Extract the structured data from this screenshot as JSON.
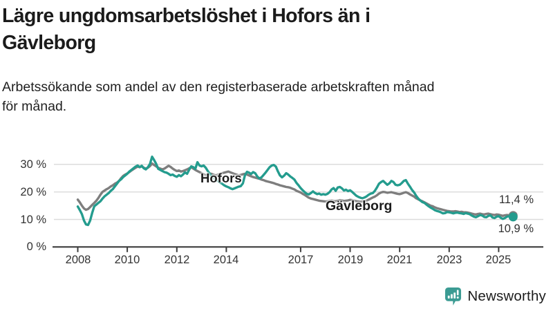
{
  "header": {
    "title_line1": "Lägre ungdomsarbetslöshet i Hofors än i",
    "title_line2": "Gävleborg",
    "subtitle_line1": "Arbetssökande som andel av den registerbaserade arbetskraften månad",
    "subtitle_line2": "för månad."
  },
  "branding": {
    "logo_text": "Newsworthy",
    "logo_icon": "newsworthy-speech-bubble-bar-chart-icon"
  },
  "colors": {
    "hofors_teal": "#249c8e",
    "gavleborg_gray": "#7e7e7e",
    "gridline": "#dcdcdc",
    "axis": "#3c3c3c",
    "text": "#1c1c1c",
    "logo_teal": "#31978e"
  },
  "chart_data": {
    "type": "line",
    "x_unit": "year, monthly points",
    "y_unit": "percent",
    "ylim": [
      0,
      35
    ],
    "xlim": [
      2008,
      2025.58
    ],
    "grid": "horizontal",
    "legend_position": "inline-labels",
    "y_ticks": [
      {
        "value": 0,
        "label": "0 %"
      },
      {
        "value": 10,
        "label": "10 %"
      },
      {
        "value": 20,
        "label": "20 %"
      },
      {
        "value": 30,
        "label": "30 %"
      }
    ],
    "x_ticks": [
      {
        "value": 2008,
        "label": "2008"
      },
      {
        "value": 2010,
        "label": "2010"
      },
      {
        "value": 2012,
        "label": "2012"
      },
      {
        "value": 2014,
        "label": "2014"
      },
      {
        "value": 2017,
        "label": "2017"
      },
      {
        "value": 2019,
        "label": "2019"
      },
      {
        "value": 2021,
        "label": "2021"
      },
      {
        "value": 2023,
        "label": "2023"
      },
      {
        "value": 2025,
        "label": "2025"
      }
    ],
    "series": [
      {
        "name": "Hofors",
        "label": "Hofors",
        "color": "#249c8e",
        "end_label": "10,9 %",
        "end_value": 10.9,
        "start_year": 2008,
        "points_per_year": 12,
        "values": [
          14.7,
          13.4,
          11.9,
          9.6,
          8.2,
          8.0,
          9.6,
          12.4,
          14.8,
          15.4,
          16.0,
          16.6,
          17.6,
          18.4,
          19.0,
          19.6,
          20.4,
          21.0,
          22.0,
          23.0,
          24.0,
          24.6,
          25.4,
          26.0,
          26.6,
          27.4,
          28.0,
          28.6,
          29.2,
          29.6,
          29.0,
          29.5,
          28.6,
          28.2,
          29.0,
          30.2,
          32.8,
          31.6,
          30.2,
          28.4,
          28.0,
          27.6,
          27.2,
          27.0,
          26.6,
          26.1,
          26.3,
          25.8,
          25.5,
          26.1,
          25.7,
          26.3,
          27.1,
          26.6,
          28.1,
          29.3,
          29.0,
          28.4,
          30.8,
          29.6,
          29.3,
          29.6,
          28.8,
          27.6,
          26.6,
          25.6,
          25.0,
          24.4,
          24.0,
          23.4,
          23.0,
          22.4,
          22.0,
          21.7,
          21.3,
          21.0,
          21.3,
          21.6,
          21.9,
          22.1,
          23.1,
          26.0,
          27.3,
          27.0,
          26.5,
          27.2,
          26.8,
          25.6,
          24.9,
          25.3,
          26.1,
          27.0,
          28.0,
          29.0,
          29.6,
          29.8,
          29.2,
          27.5,
          26.0,
          25.3,
          25.9,
          26.8,
          26.3,
          25.6,
          25.1,
          24.5,
          23.3,
          22.4,
          21.4,
          20.6,
          19.9,
          19.3,
          19.1,
          19.6,
          20.2,
          19.6,
          19.2,
          19.4,
          19.0,
          19.2,
          19.0,
          19.3,
          19.9,
          20.9,
          21.4,
          20.4,
          21.6,
          21.8,
          21.3,
          20.5,
          20.8,
          20.3,
          20.6,
          20.0,
          19.3,
          18.6,
          18.2,
          17.9,
          17.7,
          18.0,
          18.4,
          19.0,
          19.4,
          19.6,
          20.4,
          21.6,
          23.0,
          23.6,
          24.0,
          23.3,
          22.6,
          23.1,
          24.0,
          23.6,
          22.6,
          22.4,
          22.6,
          23.2,
          24.0,
          24.3,
          23.0,
          21.9,
          20.7,
          19.8,
          18.6,
          17.6,
          16.9,
          16.3,
          16.0,
          15.4,
          14.8,
          14.3,
          13.9,
          13.4,
          13.1,
          12.9,
          12.6,
          12.2,
          12.3,
          12.7,
          12.6,
          12.4,
          12.2,
          12.4,
          12.5,
          12.3,
          12.2,
          12.0,
          12.3,
          12.1,
          11.9,
          11.4,
          11.0,
          10.8,
          11.2,
          11.6,
          11.4,
          10.9,
          10.8,
          11.3,
          11.5,
          10.7,
          10.5,
          11.0,
          11.2,
          10.6,
          10.2,
          10.5,
          11.0,
          11.2,
          10.6,
          10.9
        ]
      },
      {
        "name": "Gävleborg",
        "label": "Gävleborg",
        "color": "#7e7e7e",
        "end_label": "11,4 %",
        "end_value": 11.4,
        "start_year": 2008,
        "points_per_year": 12,
        "values": [
          17.2,
          16.2,
          15.0,
          14.0,
          13.5,
          13.8,
          14.5,
          15.3,
          16.0,
          16.8,
          17.8,
          19.0,
          20.0,
          20.5,
          21.0,
          21.4,
          22.0,
          22.4,
          23.0,
          23.4,
          24.0,
          25.0,
          25.8,
          26.3,
          26.7,
          27.2,
          27.8,
          28.3,
          28.8,
          29.2,
          29.0,
          29.3,
          28.8,
          28.5,
          28.8,
          29.4,
          30.3,
          29.8,
          29.3,
          28.8,
          28.5,
          28.2,
          28.5,
          29.0,
          29.5,
          29.1,
          28.5,
          28.0,
          27.6,
          27.8,
          27.4,
          27.6,
          27.9,
          28.2,
          28.6,
          29.0,
          28.5,
          28.0,
          27.6,
          27.2,
          26.8,
          26.4,
          26.0,
          26.3,
          26.7,
          26.5,
          26.2,
          26.0,
          26.3,
          26.6,
          26.8,
          27.0,
          27.2,
          27.4,
          27.1,
          26.8,
          26.5,
          26.3,
          26.0,
          26.2,
          26.4,
          26.6,
          26.3,
          26.0,
          25.7,
          25.4,
          25.2,
          25.0,
          24.8,
          24.5,
          24.3,
          24.0,
          23.8,
          23.6,
          23.4,
          23.2,
          22.9,
          22.7,
          22.4,
          22.2,
          22.0,
          21.8,
          21.7,
          21.5,
          21.2,
          20.9,
          20.4,
          20.1,
          19.8,
          19.3,
          18.9,
          18.4,
          17.9,
          17.6,
          17.4,
          17.2,
          17.0,
          16.8,
          16.7,
          16.6,
          16.5,
          16.6,
          16.8,
          16.9,
          16.7,
          16.6,
          16.8,
          17.0,
          16.9,
          16.7,
          16.8,
          16.9,
          17.1,
          17.0,
          16.8,
          16.6,
          16.5,
          16.4,
          16.5,
          16.6,
          16.8,
          17.2,
          17.6,
          18.0,
          18.3,
          18.8,
          19.4,
          19.8,
          20.0,
          19.9,
          19.7,
          19.8,
          19.9,
          19.7,
          19.5,
          19.3,
          19.2,
          19.4,
          19.7,
          19.9,
          19.6,
          19.1,
          18.7,
          18.3,
          17.7,
          17.3,
          16.9,
          16.6,
          16.2,
          15.8,
          15.4,
          15.0,
          14.8,
          14.4,
          14.1,
          13.9,
          13.7,
          13.5,
          13.3,
          13.1,
          13.0,
          12.9,
          12.9,
          13.0,
          12.9,
          12.7,
          12.8,
          12.6,
          12.6,
          12.5,
          12.3,
          12.1,
          11.9,
          11.8,
          12.0,
          12.1,
          11.9,
          11.8,
          12.0,
          12.1,
          11.9,
          11.7,
          11.6,
          11.8,
          11.7,
          11.5,
          11.3,
          11.5,
          11.6,
          11.5,
          11.4,
          11.4
        ]
      }
    ]
  }
}
